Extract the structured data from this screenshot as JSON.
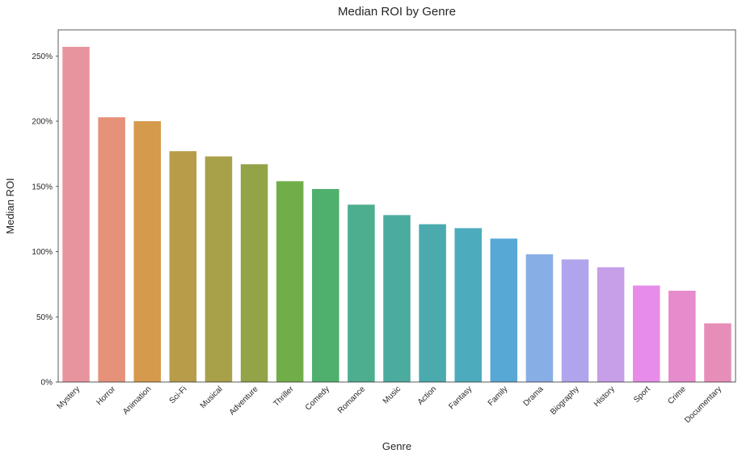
{
  "chart_data": {
    "type": "bar",
    "title": "Median ROI by Genre",
    "xlabel": "Genre",
    "ylabel": "Median ROI",
    "ylim": [
      0,
      2.7
    ],
    "grid": false,
    "y_tick_values": [
      0,
      0.5,
      1.0,
      1.5,
      2.0,
      2.5
    ],
    "y_tick_labels": [
      "0%",
      "50%",
      "100%",
      "150%",
      "200%",
      "250%"
    ],
    "categories": [
      "Mystery",
      "Horror",
      "Animation",
      "Sci-Fi",
      "Musical",
      "Adventure",
      "Thriller",
      "Comedy",
      "Romance",
      "Music",
      "Action",
      "Fantasy",
      "Family",
      "Drama",
      "Biography",
      "History",
      "Sport",
      "Crime",
      "Documentary"
    ],
    "values": [
      2.57,
      2.03,
      2.0,
      1.77,
      1.73,
      1.67,
      1.54,
      1.48,
      1.36,
      1.28,
      1.21,
      1.18,
      1.1,
      0.98,
      0.94,
      0.88,
      0.74,
      0.7,
      0.45
    ],
    "colors": [
      "#e8949e",
      "#e6927a",
      "#d59a4c",
      "#b89c4a",
      "#a9a04a",
      "#92a447",
      "#71ae4a",
      "#4fb06e",
      "#4cad8f",
      "#4bab9f",
      "#4aaaae",
      "#4cabbd",
      "#58a8d5",
      "#88aee6",
      "#b0a5ec",
      "#c79ee8",
      "#e78ce8",
      "#e68bcc",
      "#e78eb8"
    ]
  }
}
